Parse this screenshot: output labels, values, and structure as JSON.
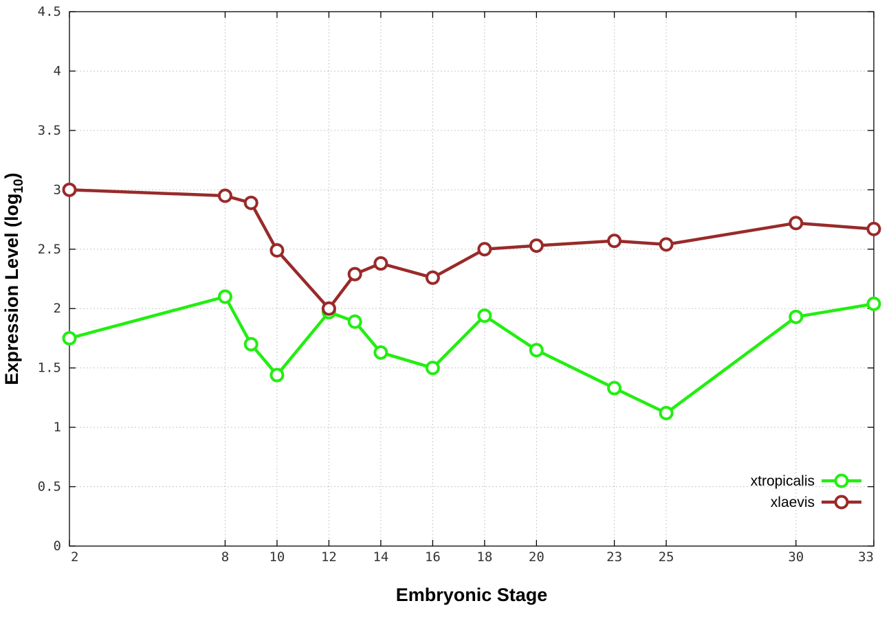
{
  "chart_data": {
    "type": "line",
    "xlabel": "Embryonic Stage",
    "ylabel_main": "Expression Level (log",
    "ylabel_sub": "10",
    "ylabel_close": ")",
    "xlim": [
      2,
      33
    ],
    "ylim": [
      0,
      4.5
    ],
    "x_ticks": [
      2,
      8,
      10,
      12,
      14,
      16,
      18,
      20,
      23,
      25,
      30,
      33
    ],
    "y_ticks": [
      0,
      0.5,
      1,
      1.5,
      2,
      2.5,
      3,
      3.5,
      4,
      4.5
    ],
    "y_tick_labels": [
      "0",
      "0.5",
      "1",
      "1.5",
      "2",
      "2.5",
      "3",
      "3.5",
      "4",
      "4.5"
    ],
    "grid": true,
    "legend_position": "bottom-right",
    "x": [
      2,
      8,
      9,
      10,
      12,
      13,
      14,
      16,
      18,
      20,
      23,
      25,
      30,
      33
    ],
    "series": [
      {
        "name": "xtropicalis",
        "color": "#22ee11",
        "values": [
          1.75,
          2.1,
          1.7,
          1.44,
          1.97,
          1.89,
          1.63,
          1.5,
          1.94,
          1.65,
          1.33,
          1.12,
          1.93,
          2.04
        ]
      },
      {
        "name": "xlaevis",
        "color": "#992a2a",
        "values": [
          3.0,
          2.95,
          2.89,
          2.49,
          2.0,
          2.29,
          2.38,
          2.26,
          2.5,
          2.53,
          2.57,
          2.54,
          2.72,
          2.67
        ]
      }
    ]
  }
}
